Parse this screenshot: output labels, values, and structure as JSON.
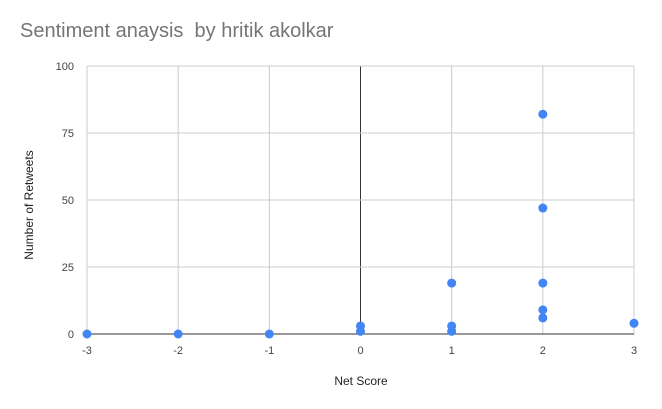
{
  "chart_data": {
    "type": "scatter",
    "title": "Sentiment anaysis  by hritik akolkar",
    "xlabel": "Net Score",
    "ylabel": "Number of Retweets",
    "xlim": [
      -3,
      3
    ],
    "ylim": [
      0,
      100
    ],
    "xticks": [
      "-3",
      "-2",
      "-1",
      "0",
      "1",
      "2",
      "3"
    ],
    "yticks": [
      "0",
      "25",
      "50",
      "75",
      "100"
    ],
    "grid": true,
    "legend": "none",
    "color": "#4285f4",
    "points": [
      {
        "x": -3,
        "y": 0
      },
      {
        "x": -2,
        "y": 0
      },
      {
        "x": -1,
        "y": 0
      },
      {
        "x": 0,
        "y": 3
      },
      {
        "x": 0,
        "y": 1
      },
      {
        "x": 1,
        "y": 19
      },
      {
        "x": 1,
        "y": 3
      },
      {
        "x": 1,
        "y": 1
      },
      {
        "x": 2,
        "y": 82
      },
      {
        "x": 2,
        "y": 47
      },
      {
        "x": 2,
        "y": 19
      },
      {
        "x": 2,
        "y": 9
      },
      {
        "x": 2,
        "y": 6
      },
      {
        "x": 3,
        "y": 4
      }
    ]
  }
}
